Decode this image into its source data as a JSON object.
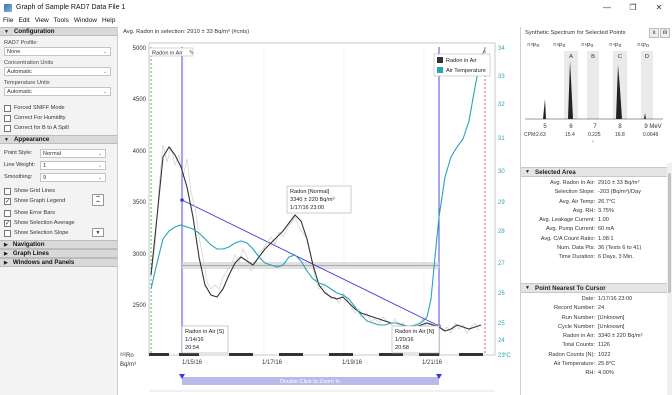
{
  "window": {
    "title": "Graph of Sample RAD7 Data File 1",
    "minimize": "—",
    "maximize": "❐",
    "close": "✕"
  },
  "menu": [
    "File",
    "Edit",
    "View",
    "Tools",
    "Window",
    "Help"
  ],
  "configuration": {
    "header": "Configuration",
    "rad7_profile_label": "RAD7 Profile:",
    "rad7_profile_value": "None",
    "conc_units_label": "Concentration Units",
    "conc_units_value": "Automatic",
    "temp_units_label": "Temperature Units",
    "temp_units_value": "Automatic",
    "checks": [
      {
        "label": "Forced SNIFF Mode",
        "checked": false
      },
      {
        "label": "Correct For Humidity",
        "checked": false
      },
      {
        "label": "Correct for B to A Spill",
        "checked": false
      }
    ]
  },
  "appearance": {
    "header": "Appearance",
    "point_style_label": "Point Style:",
    "point_style_value": "Normal",
    "line_weight_label": "Line Weight:",
    "line_weight_value": "1",
    "smoothing_label": "Smoothing:",
    "smoothing_value": "9",
    "checks": [
      {
        "label": "Show Grid Lines",
        "checked": false
      },
      {
        "label": "Show Graph Legend",
        "checked": true
      },
      {
        "label": "Show Error Bars",
        "checked": false
      },
      {
        "label": "Show Selection Average",
        "checked": true
      },
      {
        "label": "Show Selection Slope",
        "checked": false
      }
    ]
  },
  "collapsed_sections": [
    "Navigation",
    "Graph Lines",
    "Windows and Panels"
  ],
  "chart": {
    "topline": "Avg. Radon in selection: 2910 ± 33 Bq/m³ (#cnts)",
    "legend": [
      "Radon in Air",
      "Air Temperature"
    ],
    "series_label_tag": "Radon in Air",
    "y_left_ticks": [
      "5000",
      "4500",
      "4000",
      "3500",
      "3000",
      "2500"
    ],
    "y_right_ticks": [
      "34",
      "33",
      "32",
      "31",
      "30",
      "29",
      "28",
      "27",
      "26",
      "25",
      "24",
      "23"
    ],
    "x_ticks": [
      "1/15/16",
      "1/17/16",
      "1/19/16",
      "1/21/16"
    ],
    "y_left_unit_a": "²²²Rn",
    "y_left_unit_b": "Bq/m³",
    "y_right_unit": "°C",
    "tip_normal": [
      "Radon [Normal]",
      "3340 ± 220 Bq/m³",
      "1/17/16 23:00"
    ],
    "tip_s": [
      "Radon in Air [S]",
      "1/14/16",
      "20:54"
    ],
    "tip_n": [
      "Radon in Air [N]",
      "1/20/16",
      "20:58"
    ],
    "zoom_bar": "Double-Click to Zoom In",
    "colors": {
      "radon": "#333333",
      "temp": "#2aa3b8",
      "selection": "#3a3ad8",
      "red": "#e03030",
      "green": "#22aa22"
    },
    "chart_data": {
      "type": "line",
      "x": [
        "1/14/16",
        "1/15/16",
        "1/16/16",
        "1/17/16",
        "1/18/16",
        "1/19/16",
        "1/20/16",
        "1/21/16",
        "1/22/16"
      ],
      "series": [
        {
          "name": "Radon in Air",
          "values": [
            3100,
            3950,
            3050,
            2930,
            3250,
            2650,
            2400,
            2350,
            2380
          ]
        },
        {
          "name": "Air Temperature",
          "values": [
            25.5,
            28.5,
            27.0,
            28.0,
            28.5,
            25.8,
            25.0,
            33.5,
            34.0
          ]
        }
      ],
      "ylim": [
        2200,
        5000
      ],
      "y2lim": [
        23,
        34
      ]
    }
  },
  "spectrum": {
    "title": "Synthetic Spectrum for Selected Points",
    "isotopes": [
      "²¹⁰Po",
      "²¹⁸Po",
      "²¹⁶Po",
      "²¹⁴Po",
      "²¹²Po"
    ],
    "windows": [
      "A",
      "B",
      "C",
      "D"
    ],
    "axis": [
      "5",
      "6",
      "7",
      "8",
      "9 MeV"
    ],
    "cpm_label": "CPM:",
    "cpm": [
      "2.63",
      "15.4",
      "0.225",
      "16.8",
      "0.0649"
    ],
    "chart_data": {
      "type": "bar",
      "categories": [
        "5",
        "6",
        "7",
        "8",
        "9 MeV"
      ],
      "values": [
        2.63,
        15.4,
        0.225,
        16.8,
        0.0649
      ]
    }
  },
  "selected_area": {
    "header": "Selected Area",
    "rows": [
      [
        "Avg. Radon In Air:",
        "2910 ± 33 Bq/m³"
      ],
      [
        "Selection Slope:",
        "-203 (Bq/m³)/Day"
      ],
      [
        "Avg. Air Temp:",
        "26.7°C"
      ],
      [
        "Avg. RH:",
        "3.75%"
      ],
      [
        "Avg. Leakage Current:",
        "1.00"
      ],
      [
        "Avg. Pump Current:",
        "60 mA"
      ],
      [
        "Avg. C/A Count Ratio:",
        "1.08:1"
      ],
      [
        "Num. Data Pts:",
        "36 (Tests 6 to 41)"
      ],
      [
        "Time Duration:",
        "6 Days, 3 Min."
      ]
    ]
  },
  "nearest_point": {
    "header": "Point Nearest To Cursor",
    "rows": [
      [
        "Date:",
        "1/17/16 23:00"
      ],
      [
        "Record Number:",
        "24"
      ],
      [
        "Run Number:",
        "[Unknown]"
      ],
      [
        "Cycle Number:",
        "[Unknown]"
      ],
      [
        "Radon in Air:",
        "3340 ± 220 Bq/m³"
      ],
      [
        "Total Counts:",
        "1126"
      ],
      [
        "Radon Counts (N):",
        "1022"
      ],
      [
        "Air Temperature:",
        "25.8°C"
      ],
      [
        "RH:",
        "4.00%"
      ]
    ]
  }
}
